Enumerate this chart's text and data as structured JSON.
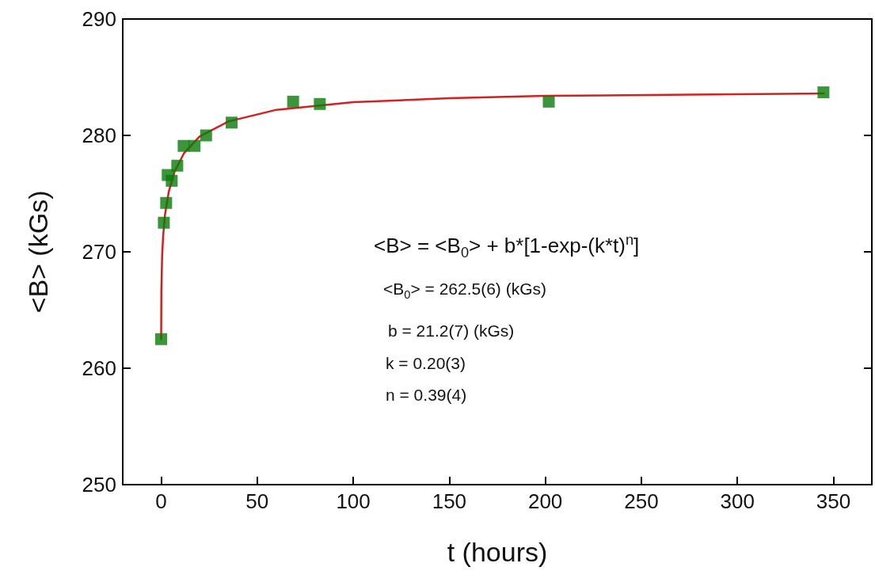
{
  "chart_data": {
    "type": "scatter",
    "xlabel": "t (hours)",
    "ylabel": "<B> (kGs)",
    "xlim": [
      -20,
      370
    ],
    "xticks": [
      0,
      50,
      100,
      150,
      200,
      250,
      300,
      350
    ],
    "ylim": [
      250,
      290
    ],
    "yticks": [
      250,
      260,
      270,
      280,
      290
    ],
    "grid": false,
    "annotations": [
      "<B> = <B$_{0}$> + b*[1-exp-(k*t)$^{n}$]",
      "<B$_{0}$> = 262.5(6) (kGs)",
      "b = 21.2(7) (kGs)",
      "k = 0.20(3)",
      "n = 0.39(4)"
    ],
    "series": [
      {
        "type": "line",
        "color": "#d42020",
        "marker": "none",
        "line_style": "solid",
        "x": [
          0,
          0.1,
          0.5,
          1,
          2,
          4,
          7,
          12,
          20,
          35,
          60,
          100,
          150,
          200,
          275,
          345
        ],
        "values": [
          262.5,
          266.6,
          269.6,
          271.3,
          273.2,
          275.2,
          276.9,
          278.5,
          279.9,
          281.2,
          282.2,
          282.85,
          283.2,
          283.4,
          283.5,
          283.6
        ]
      },
      {
        "color": "#0a7a0a",
        "marker": "square",
        "x": [
          0,
          1.4,
          2.6,
          3.4,
          5.5,
          8.4,
          11.7,
          17.4,
          23.4,
          36.7,
          68.7,
          82.6,
          201.8,
          344.8
        ],
        "values": [
          262.5,
          272.5,
          274.2,
          276.6,
          276.1,
          277.4,
          279.1,
          279.1,
          280.0,
          281.1,
          282.9,
          282.7,
          282.9,
          283.7
        ]
      }
    ]
  }
}
